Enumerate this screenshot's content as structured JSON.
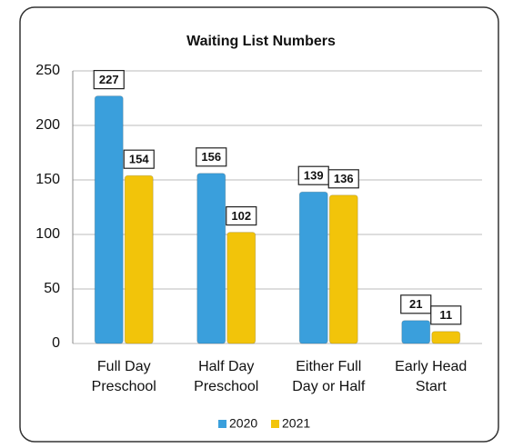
{
  "chart_data": {
    "type": "bar",
    "title": "Waiting List Numbers",
    "categories": [
      "Full Day Preschool",
      "Half Day Preschool",
      "Either Full Day or Half",
      "Early Head Start"
    ],
    "series": [
      {
        "name": "2020",
        "color": "#3a9fdc",
        "values": [
          227,
          156,
          139,
          21
        ]
      },
      {
        "name": "2021",
        "color": "#f2c40a",
        "values": [
          154,
          102,
          136,
          11
        ]
      }
    ],
    "ylim": [
      0,
      250
    ],
    "yticks": [
      0,
      50,
      100,
      150,
      200,
      250
    ],
    "grid": true,
    "legend": "bottom"
  }
}
